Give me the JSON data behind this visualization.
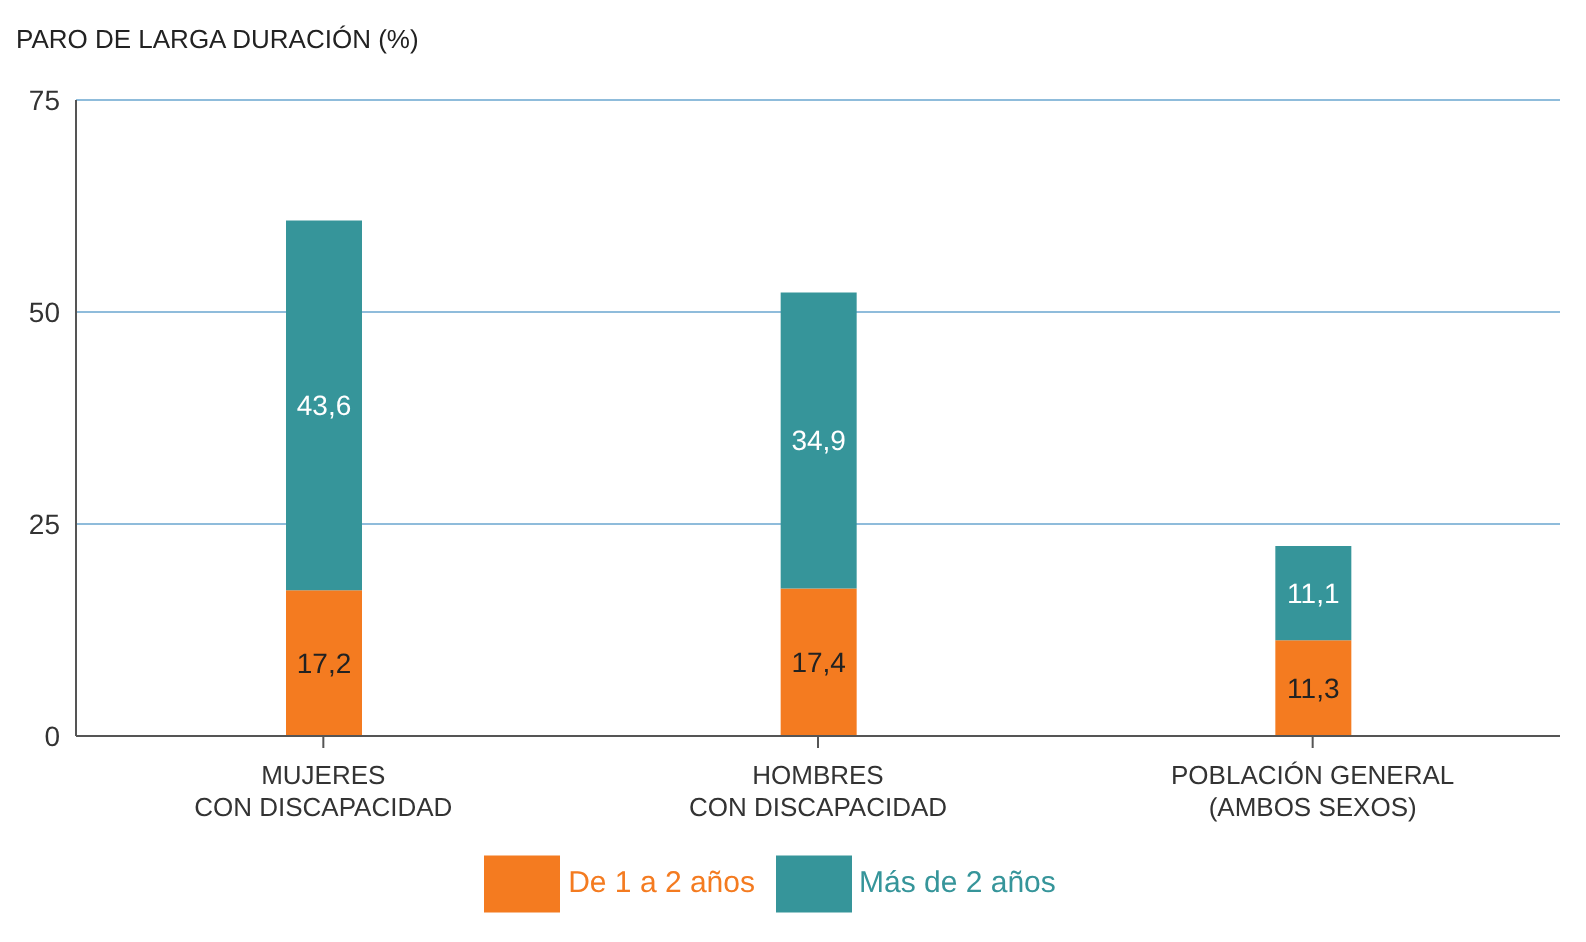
{
  "chart_data": {
    "type": "bar",
    "title": "PARO DE LARGA DURACIÓN (%)",
    "stacked": true,
    "categories": [
      "MUJERES\nCON DISCAPACIDAD",
      "HOMBRES\nCON DISCAPACIDAD",
      "POBLACIÓN GENERAL\n(AMBOS SEXOS)"
    ],
    "series": [
      {
        "name": "De 1 a 2 años",
        "color": "#f47b20",
        "values": [
          17.2,
          17.4,
          11.3
        ],
        "value_labels": [
          "17,2",
          "17,4",
          "11,3"
        ]
      },
      {
        "name": "Más de 2 años",
        "color": "#36959a",
        "values": [
          43.6,
          34.9,
          11.1
        ],
        "value_labels": [
          "43,6",
          "34,9",
          "11,1"
        ]
      }
    ],
    "ylim": [
      0,
      75
    ],
    "yticks": [
      0,
      25,
      50,
      75
    ],
    "grid": "y",
    "legend": "bottom"
  }
}
